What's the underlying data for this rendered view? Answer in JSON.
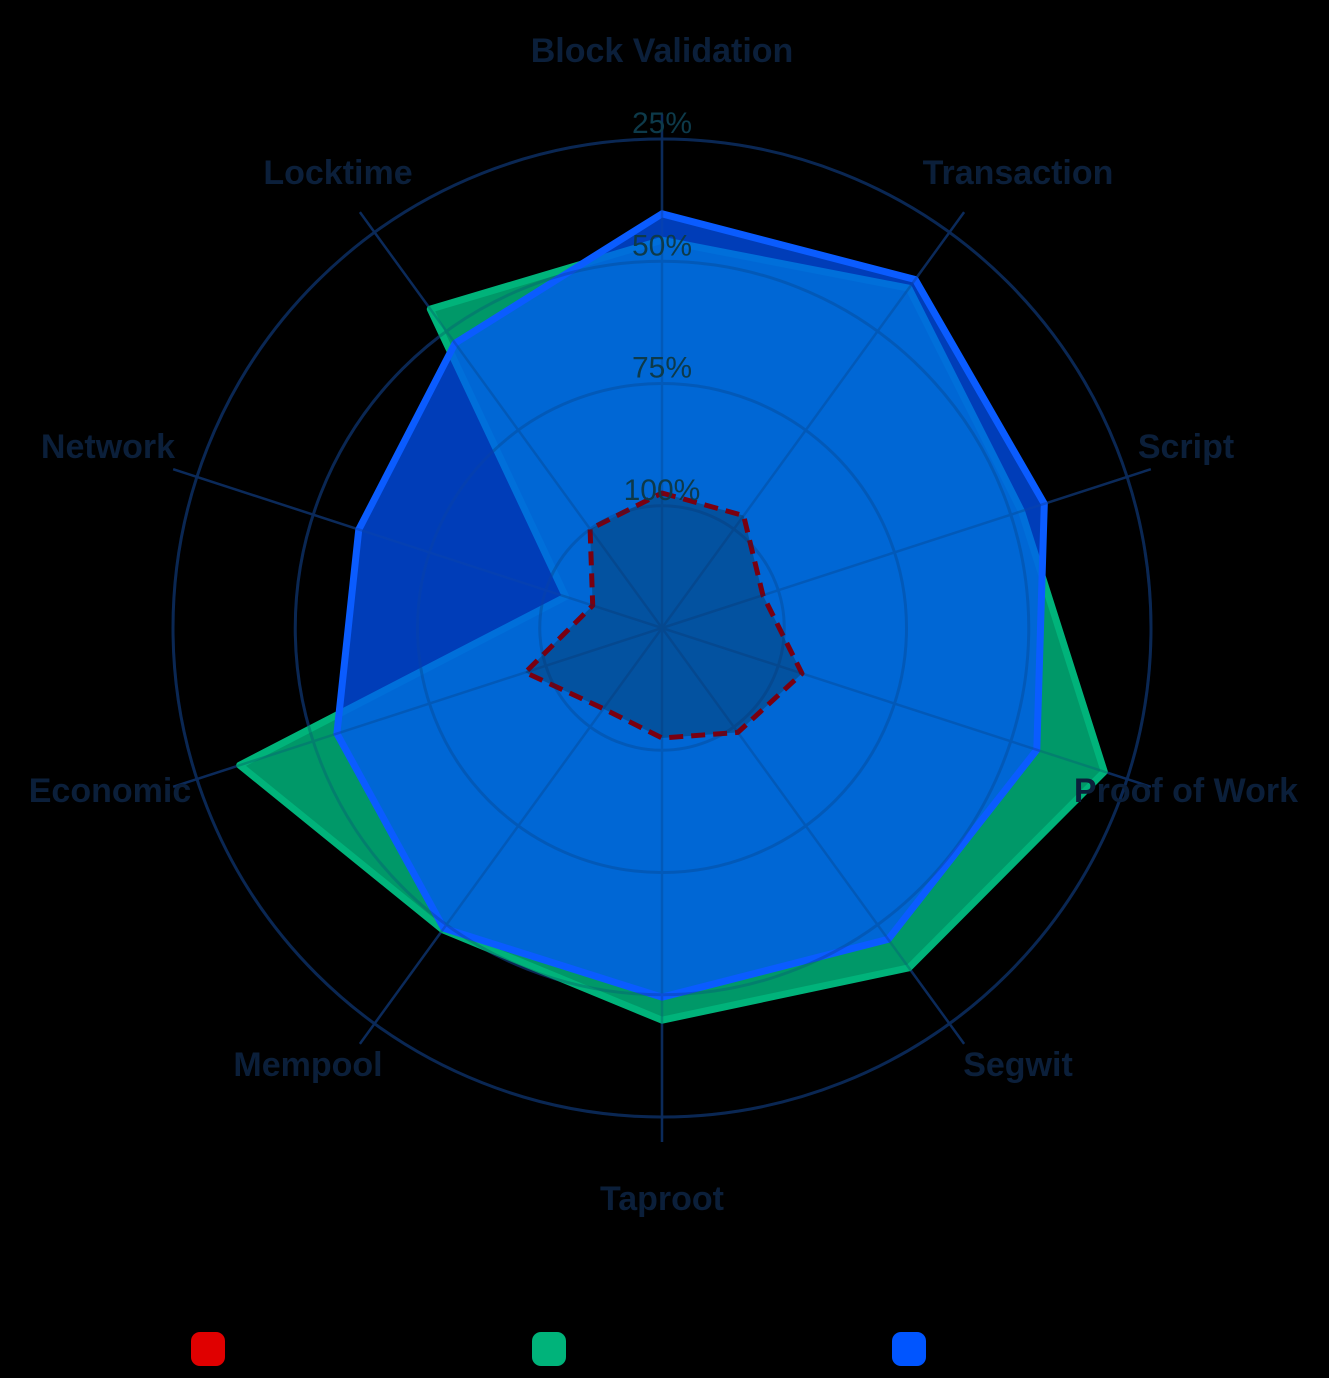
{
  "chart_data": {
    "type": "radar",
    "title": "",
    "categories": [
      "Block Validation",
      "Transaction",
      "Script",
      "Proof of Work",
      "Segwit",
      "Taproot",
      "Mempool",
      "Economic",
      "Network",
      "Locktime"
    ],
    "radial_axis": {
      "reversed": true,
      "center_value": 125,
      "outer_value": 25,
      "ticks": [
        100,
        75,
        50,
        25
      ],
      "tick_labels": [
        "100%",
        "75%",
        "50%",
        "25%"
      ],
      "grid": true
    },
    "series": [
      {
        "name": "",
        "color": "#e00000",
        "stroke": "#7a0010",
        "dashed": true,
        "values": [
          97.4,
          96.6,
          103.3,
          94.9,
          98.6,
          102.5,
          104.6,
          95.6,
          110.1,
          100.0
        ]
      },
      {
        "name": "",
        "color": "#00b37a",
        "stroke": "#00b37a",
        "dashed": false,
        "values": [
          45.7,
          39.1,
          47.7,
          29.9,
          39.1,
          44.8,
          48.7,
          34.2,
          104.3,
          44.4
        ]
      },
      {
        "name": "",
        "color": "#0055ff",
        "stroke": "#0a5cff",
        "dashed": false,
        "values": [
          40.3,
          36.9,
          42.8,
          44.4,
          46.3,
          49.5,
          49.1,
          55.1,
          59.8,
          53.0
        ]
      }
    ],
    "legend": {
      "position": "bottom",
      "items": [
        {
          "name": "",
          "color": "#e00000"
        },
        {
          "name": "",
          "color": "#00b37a"
        },
        {
          "name": "",
          "color": "#0055ff"
        }
      ]
    }
  }
}
